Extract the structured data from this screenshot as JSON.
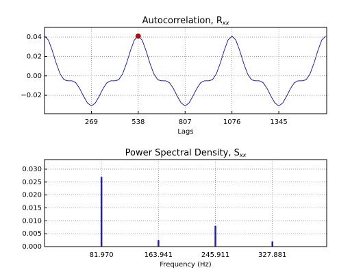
{
  "chart_data": [
    {
      "type": "line",
      "title": "Autocorrelation, R",
      "title_subscript": "xx",
      "xlabel": "Lags",
      "x": [
        0,
        22.4,
        44.8,
        67.3,
        89.7,
        112.1,
        134.5,
        156.9,
        179.3,
        201.8,
        224.2,
        246.6,
        269,
        291.4,
        313.8,
        336.3,
        358.7,
        381.1,
        403.5,
        425.9,
        448.3,
        470.8,
        493.2,
        515.6,
        538,
        560.4,
        582.8,
        605.3,
        627.7,
        650.1,
        672.5,
        694.9,
        717.3,
        739.8,
        762.2,
        784.6,
        807,
        829.4,
        851.8,
        874.3,
        896.7,
        919.1,
        941.5,
        963.9,
        986.3,
        1008.8,
        1031.2,
        1053.6,
        1076,
        1098.4,
        1120.8,
        1143.3,
        1165.7,
        1188.1,
        1210.5,
        1232.9,
        1255.3,
        1277.8,
        1300.2,
        1322.6,
        1345,
        1367.4,
        1389.8,
        1412.3,
        1434.7,
        1457.1,
        1479.5,
        1501.9,
        1524.3,
        1546.8,
        1569.2,
        1591.6,
        1614
      ],
      "series": [
        {
          "color": "#1f1fb4",
          "values": [
            0.041,
            0.037,
            0.026,
            0.013,
            0.002,
            -0.004,
            -0.005,
            -0.005,
            -0.007,
            -0.013,
            -0.021,
            -0.028,
            -0.031,
            -0.028,
            -0.021,
            -0.013,
            -0.007,
            -0.005,
            -0.005,
            -0.004,
            0.002,
            0.013,
            0.026,
            0.037,
            0.041,
            0.037,
            0.026,
            0.013,
            0.002,
            -0.004,
            -0.005,
            -0.005,
            -0.007,
            -0.013,
            -0.021,
            -0.028,
            -0.031,
            -0.028,
            -0.021,
            -0.013,
            -0.007,
            -0.005,
            -0.005,
            -0.004,
            0.002,
            0.013,
            0.026,
            0.037,
            0.041,
            0.037,
            0.026,
            0.013,
            0.002,
            -0.004,
            -0.005,
            -0.005,
            -0.007,
            -0.013,
            -0.021,
            -0.028,
            -0.031,
            -0.028,
            -0.021,
            -0.013,
            -0.007,
            -0.005,
            -0.005,
            -0.004,
            0.002,
            0.013,
            0.026,
            0.037,
            0.041
          ]
        }
      ],
      "marker": {
        "x": 538,
        "y": 0.041,
        "color": "#cc0000"
      },
      "xlim": [
        0,
        1620
      ],
      "xticks": [
        269,
        538,
        807,
        1076,
        1345
      ],
      "ylim": [
        -0.039,
        0.05
      ],
      "yticks": [
        {
          "value": -0.02,
          "label": "−0.02"
        },
        {
          "value": 0,
          "label": "0.00"
        },
        0.02,
        0.04
      ],
      "grid": true
    },
    {
      "type": "stem",
      "title": "Power Spectral Density, S",
      "title_subscript": "xx",
      "xlabel": "Frequency (Hz)",
      "x": [
        81.97,
        163.941,
        245.911,
        327.881
      ],
      "series": [
        {
          "color": "#1f1fb4",
          "values": [
            0.027,
            0.0025,
            0.008,
            0.002
          ]
        }
      ],
      "xlim": [
        0,
        406
      ],
      "xticks": [
        {
          "value": 81.97,
          "label": "81.970"
        },
        163.941,
        245.911,
        327.881
      ],
      "ylim": [
        0,
        0.0337
      ],
      "yticks": [
        {
          "value": 0,
          "label": "0.000"
        },
        0.005,
        {
          "value": 0.01,
          "label": "0.010"
        },
        0.015,
        {
          "value": 0.02,
          "label": "0.020"
        },
        0.025,
        {
          "value": 0.03,
          "label": "0.030"
        }
      ],
      "grid": true
    }
  ]
}
